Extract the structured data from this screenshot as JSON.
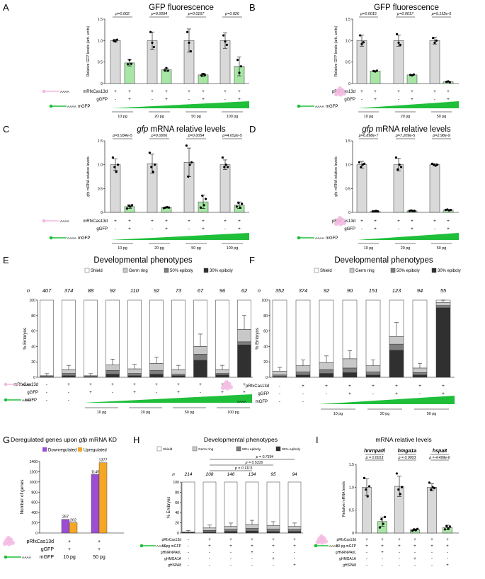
{
  "panels": {
    "A": {
      "letter": "A",
      "title": "GFP fluorescence",
      "ylabel": "Relative GFP levels (arb. units)",
      "pvals": [
        "p=0.002",
        "p=0.0094",
        "p=0.0167",
        "p=0.026"
      ],
      "rows": {
        "r1": "mRfxCas13d",
        "r2": "gGFP",
        "r3": "mGFP"
      },
      "row_r1": [
        "+",
        "+",
        "+",
        "+",
        "+",
        "+",
        "+",
        "+"
      ],
      "row_r2": [
        "-",
        "+",
        "-",
        "+",
        "-",
        "+",
        "-",
        "+"
      ],
      "doses": [
        "10 pg",
        "20 pg",
        "50 pg",
        "100 pg"
      ]
    },
    "B": {
      "letter": "B",
      "title": "GFP fluorescence",
      "ylabel": "Relative GFP levels (arb. units)",
      "pvals": [
        "p=0.0015",
        "p=0.0017",
        "p=5.152e-5"
      ],
      "rows": {
        "r1": "pRfxCas13d",
        "r2": "gGFP",
        "r3": "mGFP"
      },
      "row_r1": [
        "+",
        "+",
        "+",
        "+",
        "+",
        "+"
      ],
      "row_r2": [
        "-",
        "+",
        "-",
        "+",
        "-",
        "+"
      ],
      "doses": [
        "10 pg",
        "20 pg",
        "50 pg"
      ]
    },
    "C": {
      "letter": "C",
      "title_italic": "gfp",
      "title_rest": " mRNA relative levels",
      "ylabel": "gfp mRNA relative levels",
      "pvals": [
        "p=5.934e-5",
        "p=0.0006",
        "p=0.0054",
        "p=4.652e-5"
      ],
      "rows": {
        "r1": "mRfxCas13d",
        "r2": "gGFP",
        "r3": "mGFP"
      },
      "row_r1": [
        "+",
        "+",
        "+",
        "+",
        "+",
        "+",
        "+",
        "+"
      ],
      "row_r2": [
        "-",
        "+",
        "-",
        "+",
        "-",
        "+",
        "-",
        "+"
      ],
      "doses": [
        "10 pg",
        "20 pg",
        "50 pg",
        "100 pg"
      ]
    },
    "D": {
      "letter": "D",
      "title_italic": "gfp",
      "title_rest": " mRNA relative levels",
      "ylabel": "gfp mRNA relative levels",
      "pvals": [
        "p=6.898e-7",
        "p=7.209e-5",
        "p=2.98e-9"
      ],
      "rows": {
        "r1": "pRfxCas13d",
        "r2": "gGFP",
        "r3": "mGFP"
      },
      "row_r1": [
        "+",
        "+",
        "+",
        "+",
        "+",
        "+"
      ],
      "row_r2": [
        "-",
        "+",
        "-",
        "+",
        "-",
        "+"
      ],
      "doses": [
        "10 pg",
        "20 pg",
        "50 pg"
      ]
    },
    "E": {
      "letter": "E",
      "title": "Developmental phenotypes",
      "ylabel": "% Embryos",
      "legend": [
        "Shield",
        "Germ ring",
        "50% epiboly",
        "30% epiboly"
      ],
      "n_label": "n",
      "n_values": [
        "407",
        "374",
        "88",
        "92",
        "110",
        "92",
        "73",
        "67",
        "96",
        "62"
      ],
      "rows": {
        "r1": "mRfxCas13d",
        "r2": "gGFP",
        "r3": "mGFP"
      },
      "row_r1": [
        "-",
        "+",
        "+",
        "+",
        "+",
        "+",
        "+",
        "+",
        "+",
        "+"
      ],
      "row_r2": [
        "-",
        "-",
        "+",
        "-",
        "+",
        "-",
        "+",
        "-",
        "+",
        "+"
      ],
      "row_r3": [
        "-",
        "-"
      ],
      "doses": [
        "10 pg",
        "20 pg",
        "50 pg",
        "100 pg"
      ]
    },
    "F": {
      "letter": "F",
      "title": "Developmental phenotypes",
      "ylabel": "% Embryos",
      "legend": [
        "Shield",
        "Germ ring",
        "50% epiboly",
        "30% epiboly"
      ],
      "n_label": "n",
      "n_values": [
        "352",
        "374",
        "92",
        "90",
        "151",
        "123",
        "94",
        "55"
      ],
      "rows": {
        "r1": "pRfxCas13d",
        "r2": "gGFP",
        "r3": "mGFP"
      },
      "row_r1": [
        "-",
        "+",
        "+",
        "+",
        "+",
        "+",
        "+",
        "+"
      ],
      "row_r2": [
        "-",
        "-",
        "-",
        "+",
        "-",
        "+",
        "-",
        "+"
      ],
      "row_r3": [
        "-",
        "-"
      ],
      "doses": [
        "10 pg",
        "20 pg",
        "50 pg"
      ]
    },
    "G": {
      "letter": "G",
      "title_pre": "Deregulated genes upon ",
      "title_italic": "gfp",
      "title_post": " mRNA KD",
      "ylabel": "Number of genes",
      "legend": [
        "Downregulated",
        "Upregulated"
      ],
      "rows": {
        "r1": "pRfxCas13d",
        "r2": "gGFP",
        "r3": "mGFP"
      },
      "row_r1": [
        "+",
        "+"
      ],
      "row_r2": [
        "+",
        "+"
      ],
      "row_r3": [
        "10 pg",
        "50 pg"
      ]
    },
    "H": {
      "letter": "H",
      "title": "Developmental phenotypes",
      "ylabel": "% Embryos",
      "legend": [
        "Shield",
        "Germ ring",
        "50% epiboly",
        "30% epiboly"
      ],
      "n_label": "n",
      "n_values": [
        "214",
        "208",
        "146",
        "134",
        "95",
        "94"
      ],
      "pvals": [
        "p = 0.7694",
        "p = 0.5316",
        "p = 0.1113"
      ],
      "rows": [
        "pRfxCas13d",
        "50pg mGFP",
        "gHNRNPA0L",
        "gHMGA1A",
        "gHSPA8"
      ],
      "row_vals": [
        [
          "-",
          "+",
          "+",
          "+",
          "+",
          "+"
        ],
        [
          "-",
          "+",
          "+",
          "+",
          "+",
          "+"
        ],
        [
          "-",
          "-",
          "-",
          "+",
          "-",
          "-"
        ],
        [
          "-",
          "-",
          "-",
          "-",
          "+",
          "-"
        ],
        [
          "-",
          "-",
          "-",
          "-",
          "-",
          "+"
        ]
      ]
    },
    "I": {
      "letter": "I",
      "title": "mRNA relative levels",
      "ylabel": "Relative mRNA levels",
      "genes": [
        "hnrnpa0l",
        "hmga1a",
        "hspa8"
      ],
      "pvals": [
        "p = 0.0013",
        "p = 0.0003",
        "p = 4.499e-6"
      ],
      "rows": [
        "pRfxCas13d",
        "50 pg mGFP",
        "gHNRNPA0L",
        "gHMGA1A",
        "gHSPA8"
      ],
      "row_vals": [
        [
          "+",
          "+",
          "+",
          "+",
          "+",
          "+"
        ],
        [
          "+",
          "+",
          "+",
          "+",
          "+",
          "+"
        ],
        [
          "-",
          "+",
          "-",
          "-",
          "-",
          "-"
        ],
        [
          "-",
          "-",
          "-",
          "+",
          "-",
          "-"
        ],
        [
          "-",
          "-",
          "-",
          "-",
          "-",
          "+"
        ]
      ]
    }
  },
  "colors": {
    "control": "#d9d9d9",
    "knockdown": "#a8e6a6",
    "ramp": "#1fbf3a",
    "down": "#9b4dd3",
    "up": "#f5a623",
    "cas13d": "#f2b8e0",
    "shield": "#ffffff",
    "germ": "#c8c8c8",
    "epi50": "#7f7f7f",
    "epi30": "#303030"
  },
  "chart_data": [
    {
      "id": "A",
      "type": "bar",
      "categories": [
        "10 pg -",
        "10 pg +",
        "20 pg -",
        "20 pg +",
        "50 pg -",
        "50 pg +",
        "100 pg -",
        "100 pg +"
      ],
      "values": [
        1.0,
        0.48,
        1.0,
        0.32,
        1.0,
        0.2,
        1.0,
        0.4
      ],
      "errors": [
        0.03,
        0.07,
        0.2,
        0.04,
        0.27,
        0.04,
        0.18,
        0.22
      ],
      "points": [
        [
          1.0,
          0.98,
          1.02
        ],
        [
          0.45,
          0.55,
          0.46
        ],
        [
          1.2,
          0.95,
          0.85
        ],
        [
          0.31,
          0.36,
          0.3
        ],
        [
          1.2,
          0.95,
          0.75
        ],
        [
          0.19,
          0.22,
          0.2
        ],
        [
          1.12,
          0.98,
          0.9
        ],
        [
          0.55,
          0.25,
          0.4
        ]
      ],
      "ylim": [
        0,
        1.5
      ],
      "yticks": [
        0,
        0.5,
        1.0,
        1.5
      ]
    },
    {
      "id": "B",
      "type": "bar",
      "categories": [
        "10 pg -",
        "10 pg +",
        "20 pg -",
        "20 pg +",
        "50 pg -",
        "50 pg +"
      ],
      "values": [
        1.0,
        0.29,
        1.0,
        0.2,
        1.0,
        0.04
      ],
      "errors": [
        0.13,
        0.01,
        0.13,
        0.01,
        0.08,
        0.01
      ],
      "points": [
        [
          1.12,
          0.92,
          0.96
        ],
        [
          0.29,
          0.28,
          0.3
        ],
        [
          1.15,
          0.95,
          0.9
        ],
        [
          0.2,
          0.19,
          0.21
        ],
        [
          1.06,
          0.95,
          1.0
        ],
        [
          0.04,
          0.05,
          0.03
        ]
      ],
      "ylim": [
        0,
        1.5
      ],
      "yticks": [
        0,
        0.5,
        1.0,
        1.5
      ]
    },
    {
      "id": "C",
      "type": "bar",
      "categories": [
        "10 pg -",
        "10 pg +",
        "20 pg -",
        "20 pg +",
        "50 pg -",
        "50 pg +",
        "100 pg -",
        "100 pg +"
      ],
      "values": [
        1.0,
        0.12,
        1.02,
        0.1,
        1.05,
        0.22,
        1.0,
        0.15
      ],
      "errors": [
        0.12,
        0.04,
        0.2,
        0.01,
        0.3,
        0.14,
        0.1,
        0.07
      ],
      "points": [
        [
          1.15,
          0.95,
          0.85,
          1.0
        ],
        [
          0.08,
          0.14,
          0.12,
          0.15
        ],
        [
          1.25,
          0.95,
          0.85,
          1.0
        ],
        [
          0.09,
          0.1,
          0.11,
          0.1
        ],
        [
          1.4,
          0.75,
          1.0,
          1.05
        ],
        [
          0.1,
          0.35,
          0.15,
          0.28
        ],
        [
          1.15,
          0.95,
          1.0,
          0.95
        ],
        [
          0.12,
          0.2,
          0.1,
          0.18
        ]
      ],
      "ylim": [
        0,
        1.5
      ],
      "yticks": [
        0,
        0.5,
        1.0,
        1.5
      ]
    },
    {
      "id": "D",
      "type": "bar",
      "categories": [
        "10 pg -",
        "10 pg +",
        "20 pg -",
        "20 pg +",
        "50 pg -",
        "50 pg +"
      ],
      "values": [
        1.0,
        0.02,
        1.0,
        0.03,
        1.0,
        0.05
      ],
      "errors": [
        0.07,
        0.01,
        0.13,
        0.01,
        0.02,
        0.01
      ],
      "points": [
        [
          1.05,
          0.95,
          1.0,
          1.02
        ],
        [
          0.02,
          0.02,
          0.03,
          0.02
        ],
        [
          1.15,
          0.9,
          1.0,
          0.95
        ],
        [
          0.03,
          0.04,
          0.03,
          0.03
        ],
        [
          1.02,
          1.0,
          0.98,
          1.0
        ],
        [
          0.05,
          0.06,
          0.04,
          0.05
        ]
      ],
      "ylim": [
        0,
        1.5
      ],
      "yticks": [
        0,
        0.5,
        1.0,
        1.5
      ]
    },
    {
      "id": "E",
      "type": "stacked-bar",
      "categories": [
        "1",
        "2",
        "3",
        "4",
        "5",
        "6",
        "7",
        "8",
        "9",
        "10"
      ],
      "series": [
        {
          "name": "30% epiboly",
          "values": [
            1,
            2,
            1,
            4,
            2,
            4,
            2,
            22,
            3,
            42
          ]
        },
        {
          "name": "50% epiboly",
          "values": [
            0,
            3,
            0,
            5,
            3,
            5,
            2,
            8,
            2,
            4
          ]
        },
        {
          "name": "Germ ring",
          "values": [
            1,
            5,
            1,
            7,
            6,
            9,
            6,
            10,
            5,
            16
          ]
        },
        {
          "name": "Shield",
          "values": [
            98,
            90,
            98,
            84,
            89,
            82,
            90,
            60,
            90,
            38
          ]
        }
      ],
      "ylim": [
        0,
        100
      ],
      "yticks": [
        0,
        20,
        40,
        60,
        80,
        100
      ]
    },
    {
      "id": "F",
      "type": "stacked-bar",
      "categories": [
        "1",
        "2",
        "3",
        "4",
        "5",
        "6",
        "7",
        "8"
      ],
      "series": [
        {
          "name": "30% epiboly",
          "values": [
            1,
            3,
            5,
            6,
            3,
            35,
            3,
            90
          ]
        },
        {
          "name": "50% epiboly",
          "values": [
            2,
            4,
            5,
            6,
            4,
            8,
            3,
            3
          ]
        },
        {
          "name": "Germ ring",
          "values": [
            5,
            8,
            9,
            12,
            8,
            10,
            6,
            4
          ]
        },
        {
          "name": "Shield",
          "values": [
            92,
            85,
            81,
            76,
            85,
            47,
            88,
            3
          ]
        }
      ],
      "ylim": [
        0,
        100
      ],
      "yticks": [
        0,
        20,
        40,
        60,
        80,
        100
      ]
    },
    {
      "id": "G",
      "type": "bar",
      "categories": [
        "10 pg",
        "50 pg"
      ],
      "series": [
        {
          "name": "Downregulated",
          "values": [
            267,
            1145
          ]
        },
        {
          "name": "Upregulated",
          "values": [
            202,
            1377
          ]
        }
      ],
      "ylim": [
        0,
        1400
      ],
      "yticks": [
        0,
        200,
        400,
        600,
        800,
        1000,
        1200,
        1400
      ]
    },
    {
      "id": "H",
      "type": "stacked-bar",
      "categories": [
        "1",
        "2",
        "3",
        "4",
        "5",
        "6"
      ],
      "series": [
        {
          "name": "30% epiboly",
          "values": [
            1,
            2,
            3,
            4,
            3,
            3
          ]
        },
        {
          "name": "50% epiboly",
          "values": [
            0,
            3,
            4,
            5,
            5,
            4
          ]
        },
        {
          "name": "Germ ring",
          "values": [
            1,
            5,
            6,
            8,
            7,
            6
          ]
        },
        {
          "name": "Shield",
          "values": [
            98,
            90,
            87,
            83,
            85,
            87
          ]
        }
      ],
      "ylim": [
        0,
        100
      ],
      "yticks": [
        0,
        20,
        40,
        60,
        80,
        100
      ]
    },
    {
      "id": "I",
      "type": "bar",
      "categories": [
        "1",
        "2",
        "3",
        "4",
        "5",
        "6"
      ],
      "values": [
        1.0,
        0.25,
        1.02,
        0.07,
        1.0,
        0.12
      ],
      "errors": [
        0.18,
        0.1,
        0.22,
        0.02,
        0.08,
        0.05
      ],
      "points": [
        [
          1.2,
          0.95,
          0.8,
          1.02
        ],
        [
          0.12,
          0.3,
          0.2,
          0.35
        ],
        [
          1.3,
          0.95,
          0.85,
          1.0
        ],
        [
          0.05,
          0.08,
          0.06,
          0.09
        ],
        [
          1.1,
          0.95,
          1.0,
          0.98
        ],
        [
          0.08,
          0.15,
          0.1,
          0.14
        ]
      ],
      "ylim": [
        0,
        1.5
      ],
      "yticks": [
        0,
        0.5,
        1.0,
        1.5
      ]
    }
  ]
}
